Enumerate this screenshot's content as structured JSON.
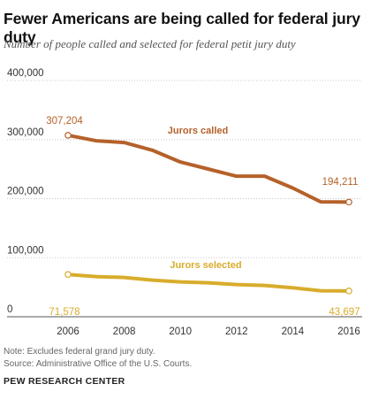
{
  "title": "Fewer Americans are being called for federal jury duty",
  "subtitle": "Number of people called and selected for federal petit jury duty",
  "note_line1": "Note: Excludes federal grand jury duty.",
  "note_line2": "Source: Administrative Office of the U.S. Courts.",
  "brand": "PEW RESEARCH CENTER",
  "chart_data": {
    "type": "line",
    "x": [
      2006,
      2007,
      2008,
      2009,
      2010,
      2011,
      2012,
      2013,
      2014,
      2015,
      2016
    ],
    "ylim": [
      0,
      400000
    ],
    "yticks": [
      0,
      100000,
      200000,
      300000,
      400000
    ],
    "ytick_labels": [
      "0",
      "100,000",
      "200,000",
      "300,000",
      "400,000"
    ],
    "xticks": [
      2006,
      2008,
      2010,
      2012,
      2014,
      2016
    ],
    "xtick_labels": [
      "2006",
      "2008",
      "2010",
      "2012",
      "2014",
      "2016"
    ],
    "grid": "horizontal dotted",
    "series": [
      {
        "name": "Jurors called",
        "color": "#b5612a",
        "values": [
          307204,
          298000,
          295000,
          282000,
          262000,
          250000,
          238000,
          238000,
          218000,
          194500,
          194211
        ],
        "start_label": "307,204",
        "end_label": "194,211"
      },
      {
        "name": "Jurors selected",
        "color": "#d8ac2c",
        "values": [
          71578,
          68000,
          66500,
          62000,
          59000,
          57500,
          54500,
          53000,
          49000,
          44000,
          43697
        ],
        "start_label": "71,578",
        "end_label": "43,697"
      }
    ]
  }
}
